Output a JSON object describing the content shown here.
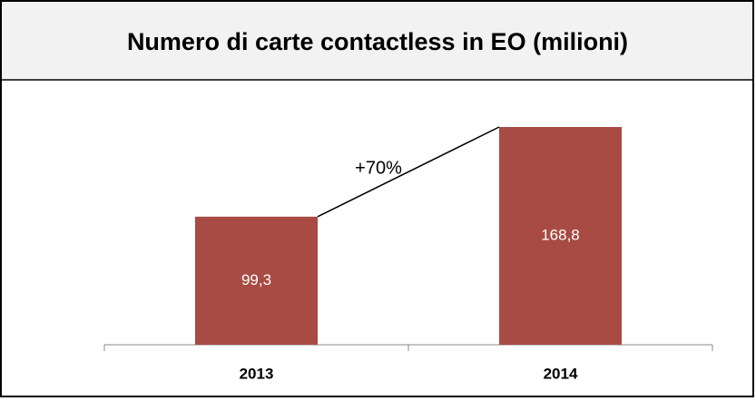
{
  "chart_data": {
    "type": "bar",
    "title": "Numero di carte contactless in EO (milioni)",
    "categories": [
      "2013",
      "2014"
    ],
    "values": [
      99.3,
      168.8
    ],
    "value_labels": [
      "99,3",
      "168,8"
    ],
    "color": "#a84b45",
    "annotation": "+70%"
  }
}
